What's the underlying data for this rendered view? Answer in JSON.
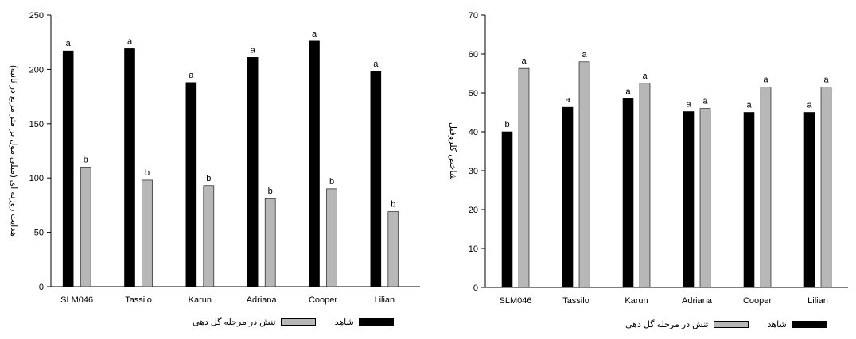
{
  "colors": {
    "control": "#000000",
    "stress": "#b7b7b7"
  },
  "chart_data": [
    {
      "type": "bar",
      "title": "",
      "xlabel": "",
      "ylabel": "هدایت روزنه ای (میلی مول بر متر مربع در ثانیه)",
      "ylim": [
        0,
        250
      ],
      "yticks": [
        "0",
        "50",
        "100",
        "150",
        "200",
        "250"
      ],
      "categories": [
        "SLM046",
        "Tassilo",
        "Karun",
        "Adriana",
        "Cooper",
        "Lilian"
      ],
      "series": [
        {
          "name": "شاهد",
          "values": [
            217,
            219,
            188,
            211,
            226,
            198
          ],
          "labels": [
            "a",
            "a",
            "a",
            "a",
            "a",
            "a"
          ]
        },
        {
          "name": "تنش در مرحله گل دهی",
          "values": [
            110,
            98,
            93,
            81,
            90,
            69
          ],
          "labels": [
            "b",
            "b",
            "b",
            "b",
            "b",
            "b"
          ]
        }
      ],
      "grid": false,
      "legend_position": "bottom"
    },
    {
      "type": "bar",
      "title": "",
      "xlabel": "",
      "ylabel": "شاخص کلروفیل",
      "ylim": [
        0,
        70
      ],
      "yticks": [
        "0",
        "10",
        "20",
        "30",
        "40",
        "50",
        "60",
        "70"
      ],
      "categories": [
        "SLM046",
        "Tassilo",
        "Karun",
        "Adriana",
        "Cooper",
        "Lilian"
      ],
      "series": [
        {
          "name": "شاهد",
          "values": [
            40,
            46.3,
            48.5,
            45.2,
            45,
            45
          ],
          "labels": [
            "b",
            "a",
            "a",
            "a",
            "a",
            "a"
          ]
        },
        {
          "name": "تنش در مرحله گل دهی",
          "values": [
            56.3,
            58,
            52.5,
            46,
            51.5,
            51.5
          ],
          "labels": [
            "a",
            "a",
            "a",
            "a",
            "a",
            "a"
          ]
        }
      ],
      "grid": false,
      "legend_position": "bottom"
    }
  ]
}
